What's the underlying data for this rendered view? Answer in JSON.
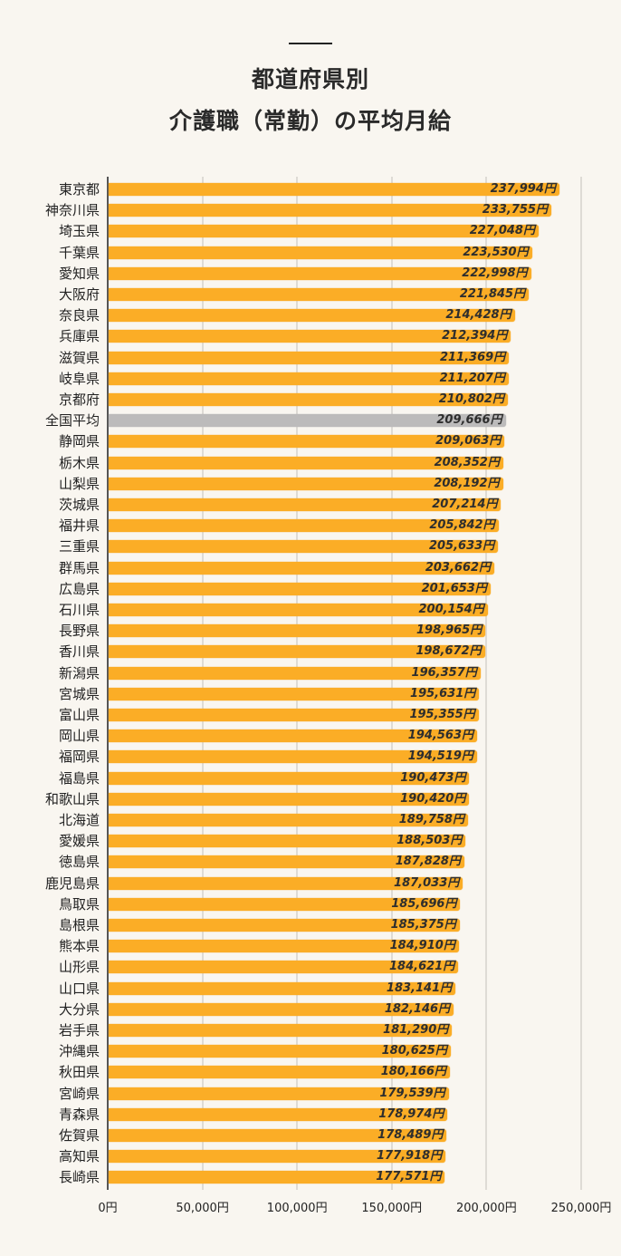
{
  "header": {
    "title_line1": "都道府県別",
    "title_line2": "介護職（常勤）の平均月給"
  },
  "colors": {
    "background": "#f9f6f0",
    "bar": "#fbad26",
    "bar_highlight": "#bcbbbb",
    "text": "#222222",
    "grid": "#dedbd5"
  },
  "axis": {
    "ticks": [
      "0円",
      "50,000円",
      "100,000円",
      "150,000円",
      "200,000円",
      "250,000円"
    ]
  },
  "chart_data": {
    "type": "bar",
    "orientation": "horizontal",
    "title": "都道府県別 介護職（常勤）の平均月給",
    "xlabel": "",
    "ylabel": "",
    "xlim": [
      0,
      250000
    ],
    "grid": true,
    "unit": "円",
    "highlight_category": "全国平均",
    "categories": [
      "東京都",
      "神奈川県",
      "埼玉県",
      "千葉県",
      "愛知県",
      "大阪府",
      "奈良県",
      "兵庫県",
      "滋賀県",
      "岐阜県",
      "京都府",
      "全国平均",
      "静岡県",
      "栃木県",
      "山梨県",
      "茨城県",
      "福井県",
      "三重県",
      "群馬県",
      "広島県",
      "石川県",
      "長野県",
      "香川県",
      "新潟県",
      "宮城県",
      "富山県",
      "岡山県",
      "福岡県",
      "福島県",
      "和歌山県",
      "北海道",
      "愛媛県",
      "徳島県",
      "鹿児島県",
      "鳥取県",
      "島根県",
      "熊本県",
      "山形県",
      "山口県",
      "大分県",
      "岩手県",
      "沖縄県",
      "秋田県",
      "宮崎県",
      "青森県",
      "佐賀県",
      "高知県",
      "長崎県"
    ],
    "values": [
      237994,
      233755,
      227048,
      223530,
      222998,
      221845,
      214428,
      212394,
      211369,
      211207,
      210802,
      209666,
      209063,
      208352,
      208192,
      207214,
      205842,
      205633,
      203662,
      201653,
      200154,
      198965,
      198672,
      196357,
      195631,
      195355,
      194563,
      194519,
      190473,
      190420,
      189758,
      188503,
      187828,
      187033,
      185696,
      185375,
      184910,
      184621,
      183141,
      182146,
      181290,
      180625,
      180166,
      179539,
      178974,
      178489,
      177918,
      177571
    ],
    "value_labels": [
      "237,994円",
      "233,755円",
      "227,048円",
      "223,530円",
      "222,998円",
      "221,845円",
      "214,428円",
      "212,394円",
      "211,369円",
      "211,207円",
      "210,802円",
      "209,666円",
      "209,063円",
      "208,352円",
      "208,192円",
      "207,214円",
      "205,842円",
      "205,633円",
      "203,662円",
      "201,653円",
      "200,154円",
      "198,965円",
      "198,672円",
      "196,357円",
      "195,631円",
      "195,355円",
      "194,563円",
      "194,519円",
      "190,473円",
      "190,420円",
      "189,758円",
      "188,503円",
      "187,828円",
      "187,033円",
      "185,696円",
      "185,375円",
      "184,910円",
      "184,621円",
      "183,141円",
      "182,146円",
      "181,290円",
      "180,625円",
      "180,166円",
      "179,539円",
      "178,974円",
      "178,489円",
      "177,918円",
      "177,571円"
    ],
    "x_tick_labels": [
      "0円",
      "50,000円",
      "100,000円",
      "150,000円",
      "200,000円",
      "250,000円"
    ]
  }
}
